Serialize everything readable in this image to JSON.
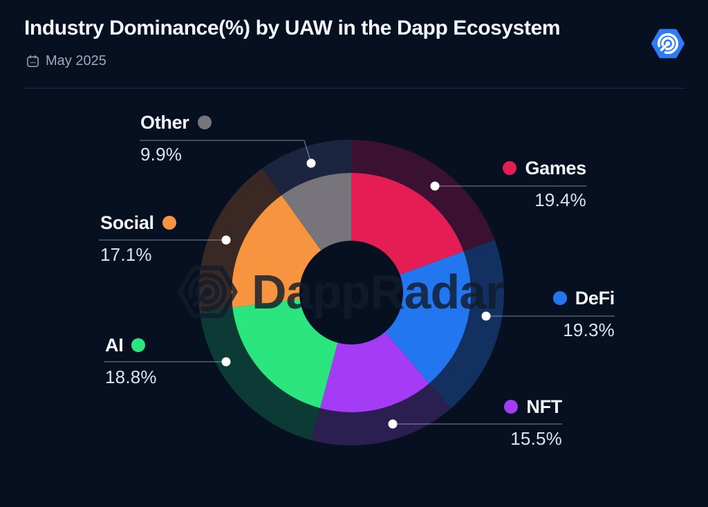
{
  "header": {
    "title": "Industry Dominance(%) by UAW in the Dapp Ecosystem",
    "date_label": "May 2025"
  },
  "brand": {
    "name": "DappRadar",
    "logo_color": "#2E7BF7"
  },
  "watermark": {
    "text": "DappRadar"
  },
  "chart_data": {
    "type": "pie",
    "subtype": "donut",
    "title": "Industry Dominance(%) by UAW in the Dapp Ecosystem",
    "period": "May 2025",
    "unit": "percent",
    "total": 100,
    "start_angle_deg": 0,
    "direction": "clockwise",
    "legend_position": "around",
    "categories": [
      "Games",
      "DeFi",
      "NFT",
      "AI",
      "Social",
      "Other"
    ],
    "values": [
      19.4,
      19.3,
      15.5,
      18.8,
      17.1,
      9.9
    ],
    "slices": [
      {
        "label": "Games",
        "value": 19.4,
        "display": "19.4%",
        "color": "#E41E55",
        "halo_color": "#3A1133",
        "label_side": "right"
      },
      {
        "label": "DeFi",
        "value": 19.3,
        "display": "19.3%",
        "color": "#2277F0",
        "halo_color": "#123161",
        "label_side": "right"
      },
      {
        "label": "NFT",
        "value": 15.5,
        "display": "15.5%",
        "color": "#A43CF5",
        "halo_color": "#2B1F52",
        "label_side": "right"
      },
      {
        "label": "AI",
        "value": 18.8,
        "display": "18.8%",
        "color": "#2BE57E",
        "halo_color": "#0C3B35",
        "label_side": "left"
      },
      {
        "label": "Social",
        "value": 17.1,
        "display": "17.1%",
        "color": "#F7943F",
        "halo_color": "#3A2824",
        "label_side": "left"
      },
      {
        "label": "Other",
        "value": 9.9,
        "display": "9.9%",
        "color": "#77757B",
        "halo_color": "#1C2540",
        "label_side": "left"
      }
    ]
  }
}
